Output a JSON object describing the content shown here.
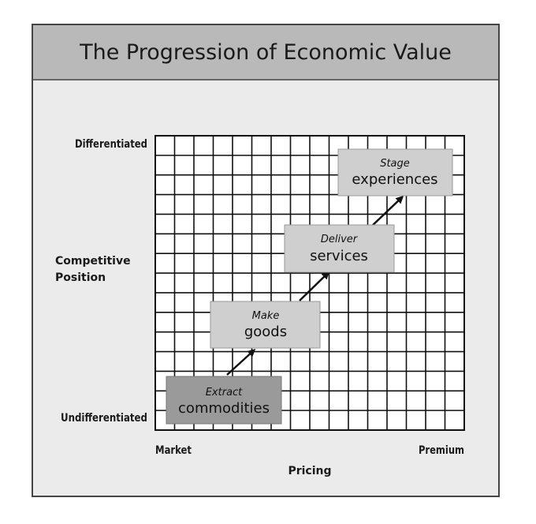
{
  "title": "The Progression of Economic Value",
  "y_axis": {
    "title_lines": [
      "Competitive",
      "Position"
    ],
    "top_label": "Differentiated",
    "bottom_label": "Undifferentiated"
  },
  "x_axis": {
    "title": "Pricing",
    "left_label": "Market",
    "right_label": "Premium"
  },
  "stages": [
    {
      "verb": "Extract",
      "noun": "commodities",
      "color": "#9a9a9a"
    },
    {
      "verb": "Make",
      "noun": "goods",
      "color": "#cfcfcf"
    },
    {
      "verb": "Deliver",
      "noun": "services",
      "color": "#cfcfcf"
    },
    {
      "verb": "Stage",
      "noun": "experiences",
      "color": "#cfcfcf"
    }
  ]
}
